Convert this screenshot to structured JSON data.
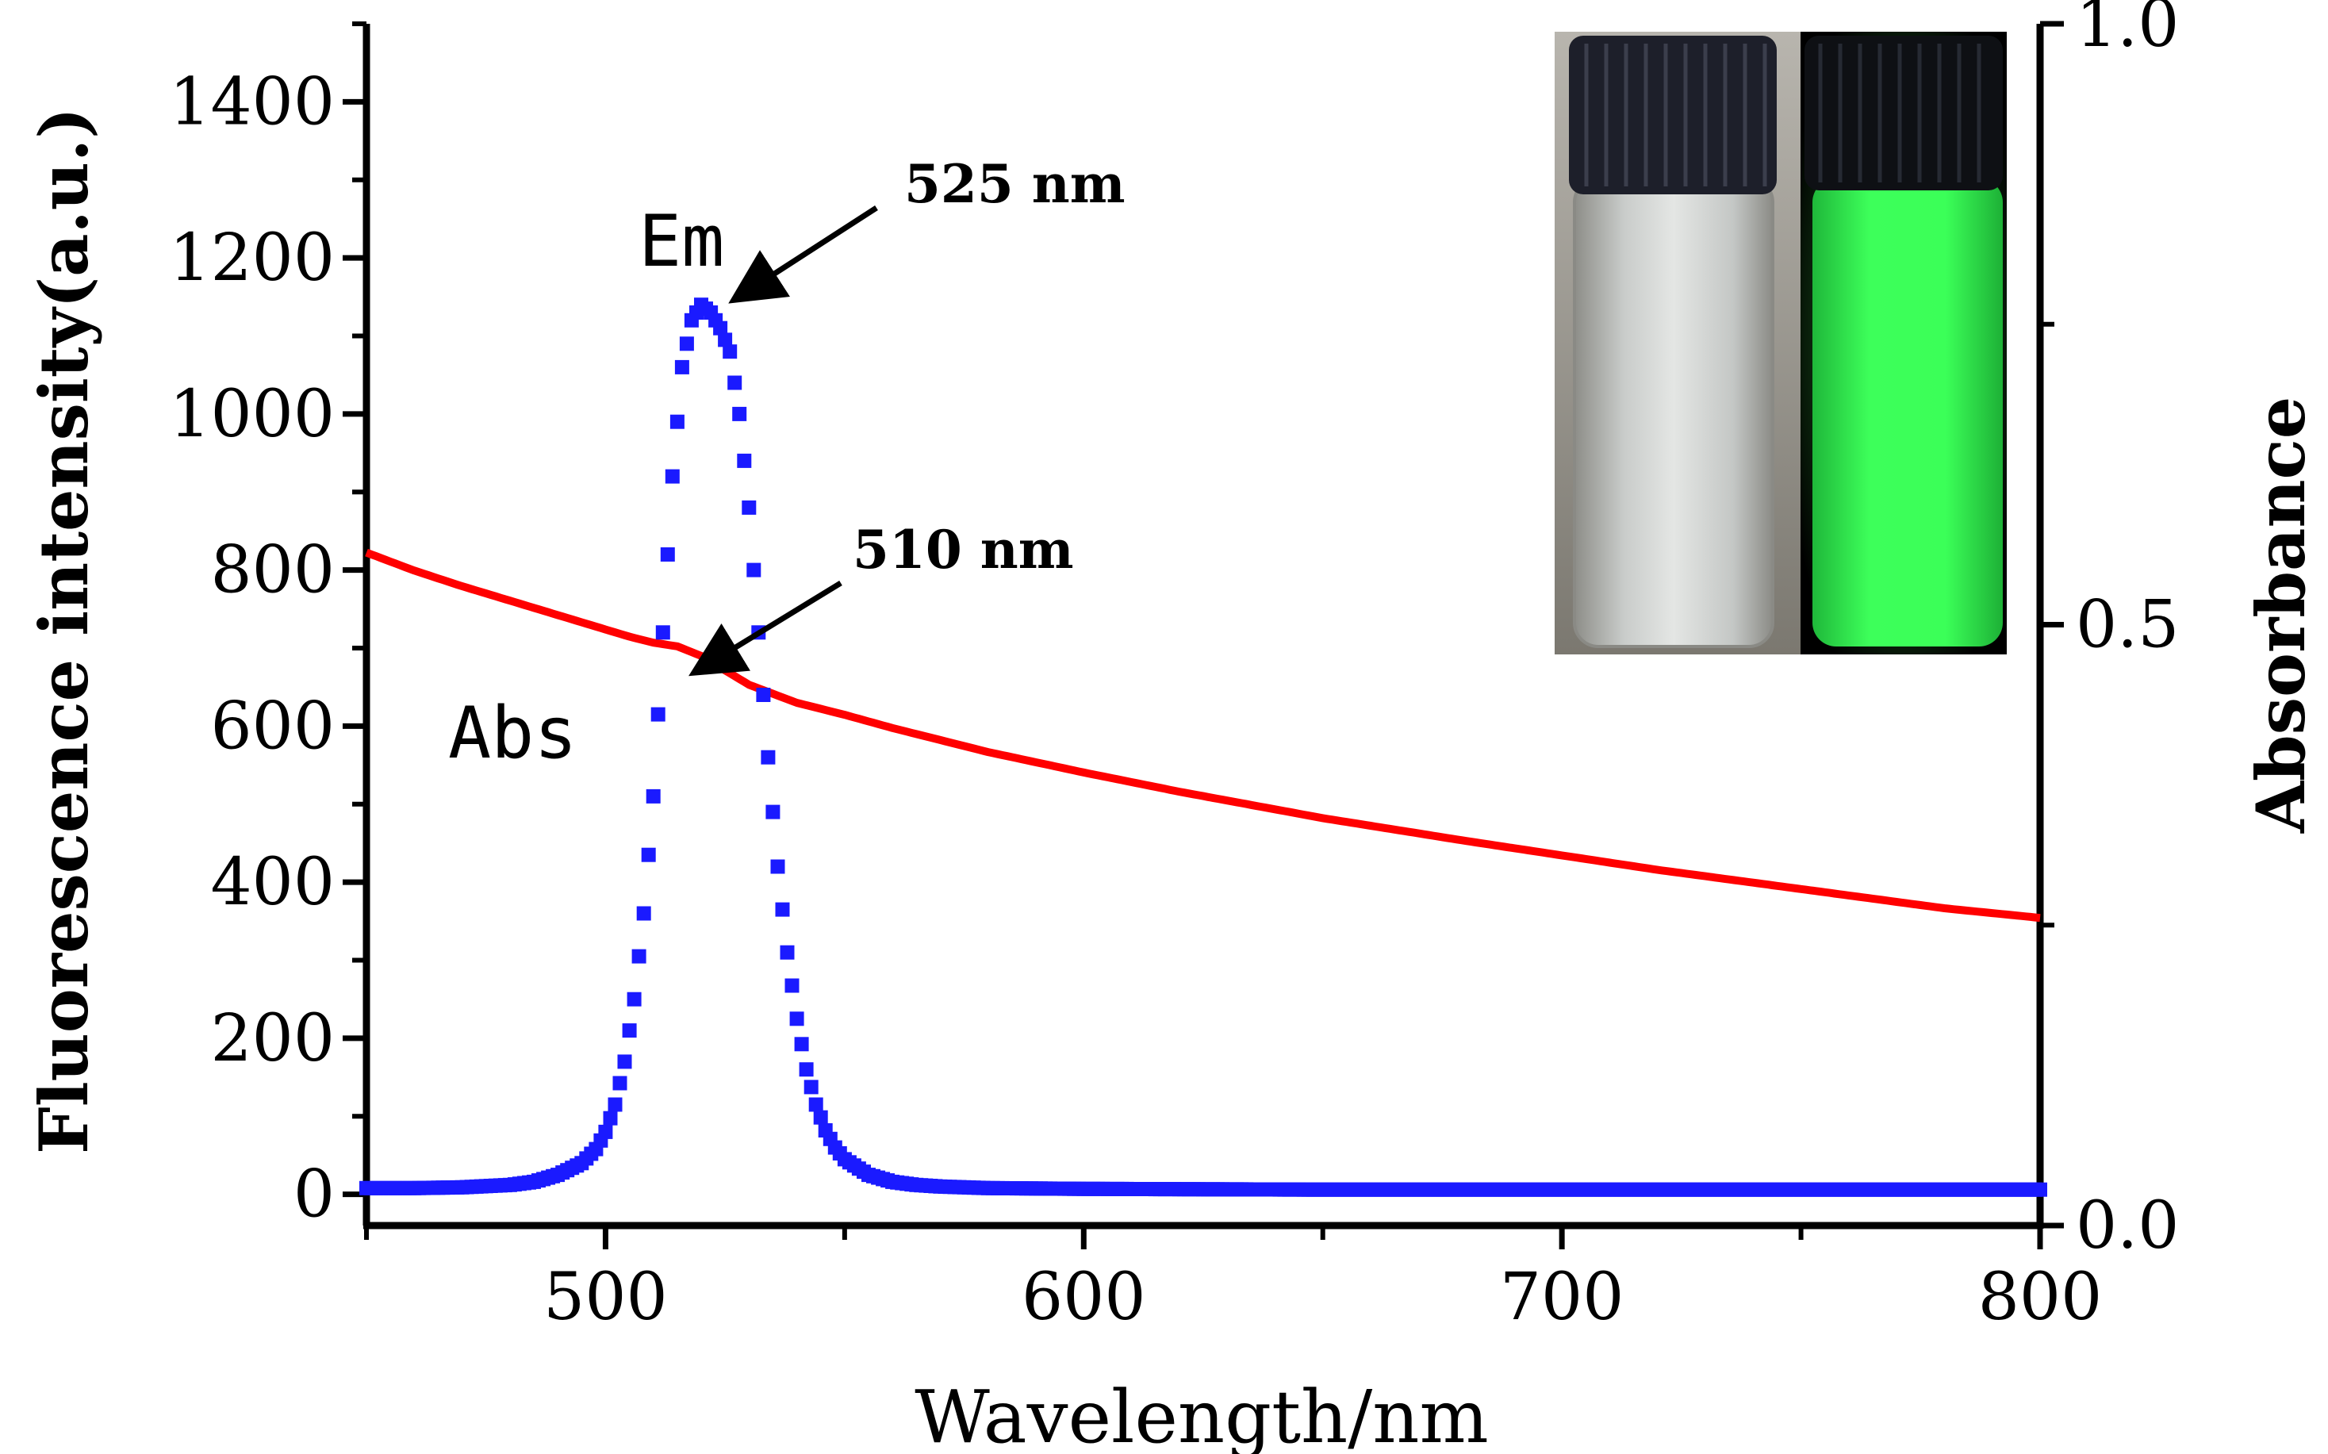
{
  "chart_data": {
    "type": "scatter",
    "xlabel": "Wavelength/nm",
    "ylabel": "Fluorescence intensity(a.u.)",
    "y2label": "Absorbance",
    "xlim": [
      450,
      800
    ],
    "ylim": [
      -40,
      1500
    ],
    "y2lim": [
      0.0,
      1.0
    ],
    "x_ticks": [
      500,
      600,
      700,
      800
    ],
    "y_ticks": [
      0,
      200,
      400,
      600,
      800,
      1000,
      1200,
      1400
    ],
    "y2_ticks": [
      "0.0",
      "0.5",
      "1.0"
    ],
    "y2_tick_values": [
      0.0,
      0.5,
      1.0
    ],
    "grid": false,
    "series": [
      {
        "name": "Em",
        "axis": "left",
        "color": "#1a1aff",
        "marker": "square",
        "x": [
          450,
          460,
          470,
          480,
          485,
          490,
          495,
          498,
          500,
          502,
          504,
          506,
          508,
          510,
          512,
          514,
          516,
          518,
          520,
          522,
          524,
          526,
          528,
          530,
          532,
          534,
          536,
          538,
          540,
          542,
          544,
          546,
          548,
          550,
          555,
          560,
          565,
          570,
          580,
          600,
          650,
          700,
          750,
          800
        ],
        "y": [
          8,
          8,
          9,
          12,
          16,
          25,
          40,
          58,
          80,
          115,
          170,
          250,
          360,
          510,
          720,
          920,
          1060,
          1120,
          1140,
          1130,
          1110,
          1080,
          1000,
          880,
          720,
          560,
          420,
          310,
          225,
          160,
          115,
          82,
          60,
          45,
          25,
          16,
          12,
          10,
          8,
          7,
          6,
          6,
          6,
          6
        ]
      },
      {
        "name": "Abs",
        "axis": "right",
        "color": "#ff0000",
        "marker": "line",
        "x": [
          450,
          460,
          470,
          480,
          490,
          500,
          505,
          510,
          515,
          520,
          525,
          530,
          540,
          550,
          560,
          580,
          600,
          620,
          650,
          680,
          700,
          720,
          750,
          780,
          800
        ],
        "y": [
          0.56,
          0.545,
          0.532,
          0.52,
          0.508,
          0.496,
          0.49,
          0.485,
          0.482,
          0.474,
          0.462,
          0.45,
          0.435,
          0.425,
          0.414,
          0.394,
          0.377,
          0.361,
          0.339,
          0.32,
          0.308,
          0.296,
          0.28,
          0.264,
          0.256
        ]
      }
    ],
    "annotations": [
      {
        "text": "525 nm",
        "x": 525,
        "y": 1130
      },
      {
        "text": "510 nm",
        "x": 515,
        "y": 0.485
      }
    ]
  },
  "inset": {
    "left_vial": "clear-vial-photo",
    "right_vial": "green-fluorescent-vial-photo",
    "glow_color": "#33ff55"
  }
}
